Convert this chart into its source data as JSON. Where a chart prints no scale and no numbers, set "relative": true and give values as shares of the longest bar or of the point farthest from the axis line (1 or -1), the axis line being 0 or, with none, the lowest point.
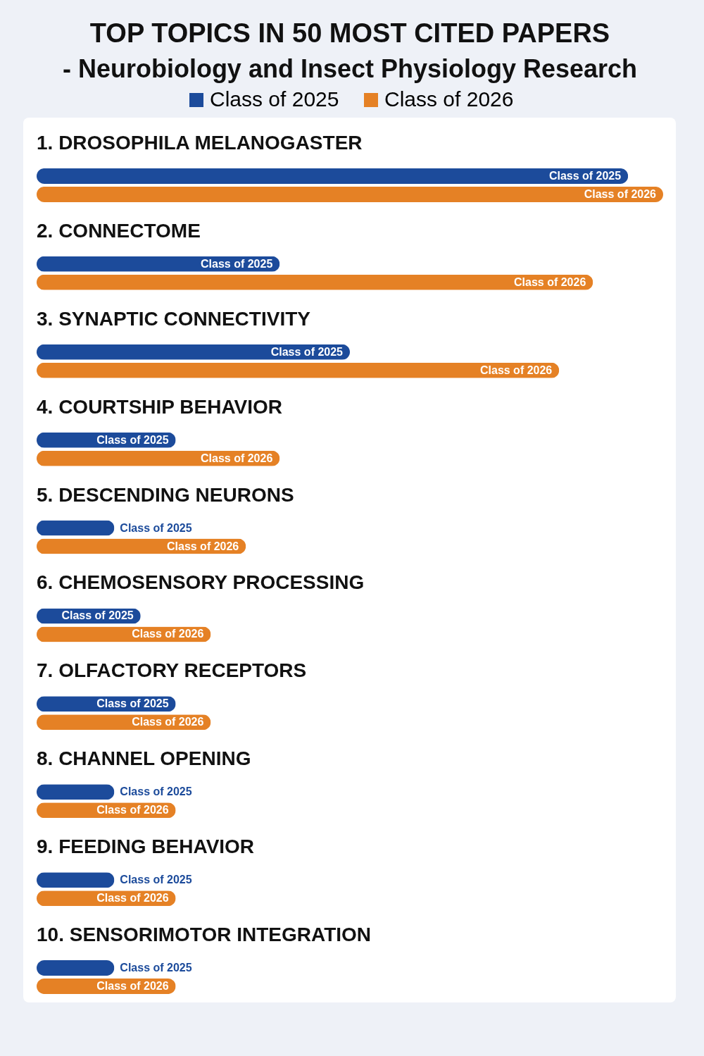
{
  "chart_data": {
    "type": "bar",
    "orientation": "horizontal",
    "relative": true,
    "title": "TOP TOPICS IN 50 MOST CITED PAPERS",
    "subtitle": "- Neurobiology and Insect Physiology Research",
    "legend": "top",
    "categories": [
      "1. DROSOPHILA MELANOGASTER",
      "2. CONNECTOME",
      "3. SYNAPTIC CONNECTIVITY",
      "4. COURTSHIP BEHAVIOR",
      "5. DESCENDING NEURONS",
      "6. CHEMOSENSORY PROCESSING",
      "7. OLFACTORY RECEPTORS",
      "8. CHANNEL OPENING",
      "9. FEEDING BEHAVIOR",
      "10. SENSORIMOTOR INTEGRATION"
    ],
    "series": [
      {
        "name": "Class of 2025",
        "color": "#1c4b9b",
        "values": [
          0.944,
          0.388,
          0.5,
          0.222,
          0.124,
          0.166,
          0.222,
          0.124,
          0.124,
          0.124
        ]
      },
      {
        "name": "Class of 2026",
        "color": "#e58125",
        "values": [
          1,
          0.888,
          0.834,
          0.388,
          0.334,
          0.278,
          0.278,
          0.222,
          0.222,
          0.222
        ]
      }
    ]
  }
}
